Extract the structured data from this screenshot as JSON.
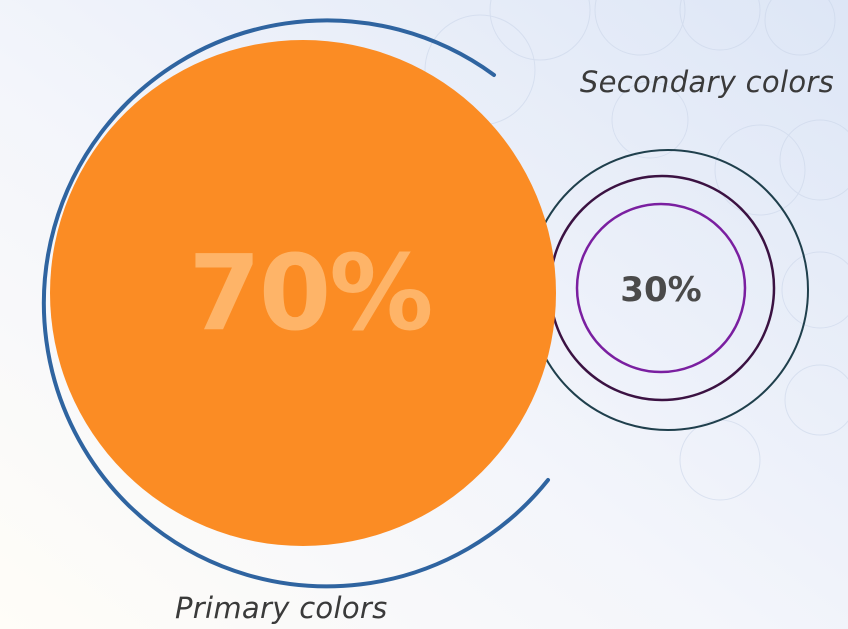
{
  "primary": {
    "percent": "70%",
    "label": "Primary colors",
    "fill_color": "#fb8c24",
    "ring_color": "#2f64a0"
  },
  "secondary": {
    "percent": "30%",
    "label": "Secondary colors",
    "ring_colors": [
      "#1f3f4c",
      "#3b1242",
      "#7a1fa0"
    ]
  },
  "background": {
    "gradient_from": "#dce6f5",
    "gradient_to": "#fdfbf6"
  }
}
